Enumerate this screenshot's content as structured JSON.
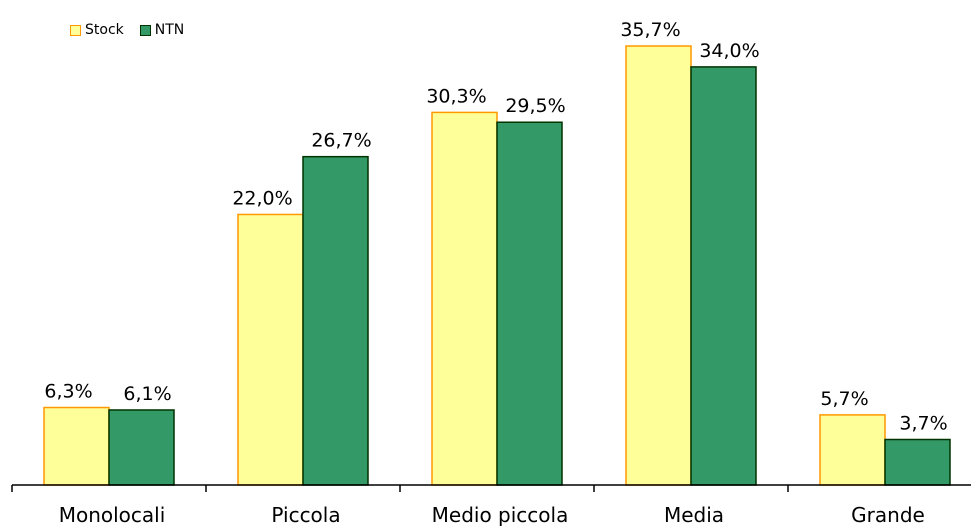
{
  "chart_data": {
    "type": "bar",
    "categories": [
      "Monolocali",
      "Piccola",
      "Medio piccola",
      "Media",
      "Grande"
    ],
    "series": [
      {
        "name": "Stock",
        "values": [
          6.3,
          22.0,
          30.3,
          35.7,
          5.7
        ],
        "labels": [
          "6,3%",
          "22,0%",
          "30,3%",
          "35,7%",
          "5,7%"
        ],
        "fill": "#FFFF99",
        "stroke": "#FF9900"
      },
      {
        "name": "NTN",
        "values": [
          6.1,
          26.7,
          29.5,
          34.0,
          3.7
        ],
        "labels": [
          "6,1%",
          "26,7%",
          "29,5%",
          "34,0%",
          "3,7%"
        ],
        "fill": "#339966",
        "stroke": "#003300"
      }
    ],
    "ylim": [
      0,
      36.6
    ],
    "grid": false,
    "legend_position": "top-left"
  }
}
